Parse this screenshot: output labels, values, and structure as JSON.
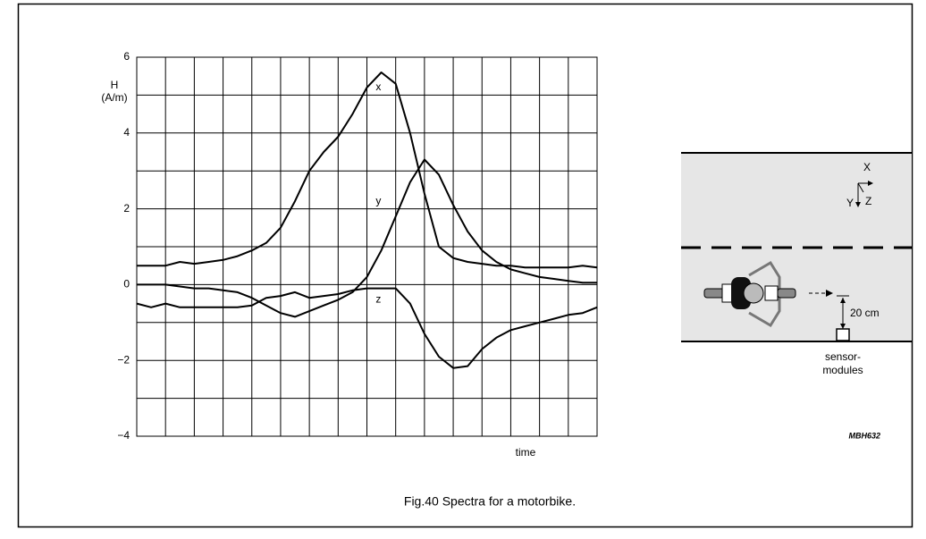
{
  "chart_data": {
    "type": "line",
    "y_label_lines": [
      "H",
      "(A/m)"
    ],
    "x_label": "time",
    "x": [
      0,
      0.5,
      1,
      1.5,
      2,
      2.5,
      3,
      3.5,
      4,
      4.5,
      5,
      5.5,
      6,
      6.5,
      7,
      7.5,
      8,
      8.5,
      9,
      9.5,
      10,
      10.5,
      11,
      11.5,
      12,
      12.5,
      13,
      13.5,
      14,
      14.5,
      15,
      15.5,
      16
    ],
    "series": [
      {
        "name": "x",
        "color": "#000000",
        "values": [
          0.5,
          0.5,
          0.5,
          0.6,
          0.55,
          0.6,
          0.65,
          0.75,
          0.9,
          1.1,
          1.5,
          2.2,
          3.0,
          3.5,
          3.9,
          4.5,
          5.2,
          5.6,
          5.3,
          4.0,
          2.4,
          1.0,
          0.7,
          0.6,
          0.55,
          0.5,
          0.5,
          0.45,
          0.45,
          0.45,
          0.45,
          0.5,
          0.45
        ]
      },
      {
        "name": "y",
        "color": "#000000",
        "values": [
          0,
          0,
          0,
          -0.05,
          -0.1,
          -0.1,
          -0.15,
          -0.2,
          -0.35,
          -0.55,
          -0.75,
          -0.85,
          -0.7,
          -0.55,
          -0.4,
          -0.2,
          0.2,
          0.9,
          1.8,
          2.7,
          3.3,
          2.9,
          2.1,
          1.4,
          0.9,
          0.6,
          0.4,
          0.3,
          0.2,
          0.15,
          0.1,
          0.05,
          0.05
        ]
      },
      {
        "name": "z",
        "color": "#000000",
        "values": [
          -0.5,
          -0.6,
          -0.5,
          -0.6,
          -0.6,
          -0.6,
          -0.6,
          -0.6,
          -0.55,
          -0.35,
          -0.3,
          -0.2,
          -0.35,
          -0.3,
          -0.25,
          -0.15,
          -0.1,
          -0.1,
          -0.1,
          -0.5,
          -1.3,
          -1.9,
          -2.2,
          -2.15,
          -1.7,
          -1.4,
          -1.2,
          -1.1,
          -1.0,
          -0.9,
          -0.8,
          -0.75,
          -0.6
        ]
      }
    ],
    "xlim": [
      0,
      16
    ],
    "xticks": [
      0,
      1,
      2,
      3,
      4,
      5,
      6,
      7,
      8,
      9,
      10,
      11,
      12,
      13,
      14,
      15,
      16
    ],
    "ylim": [
      -4,
      6
    ],
    "yticks": [
      {
        "value": -4,
        "label": "−4"
      },
      {
        "value": -2,
        "label": "−2"
      },
      0,
      2,
      4,
      6
    ],
    "minor_yticks": [
      -3,
      -1,
      1,
      3,
      5
    ],
    "grid": true
  },
  "caption": "Fig.40  Spectra for a motorbike.",
  "diagram": {
    "axis_x": "X",
    "axis_y": "Y",
    "axis_z": "Z",
    "distance": "20 cm",
    "sensor_lines": [
      "sensor-",
      "modules"
    ]
  },
  "code": "MBH632"
}
